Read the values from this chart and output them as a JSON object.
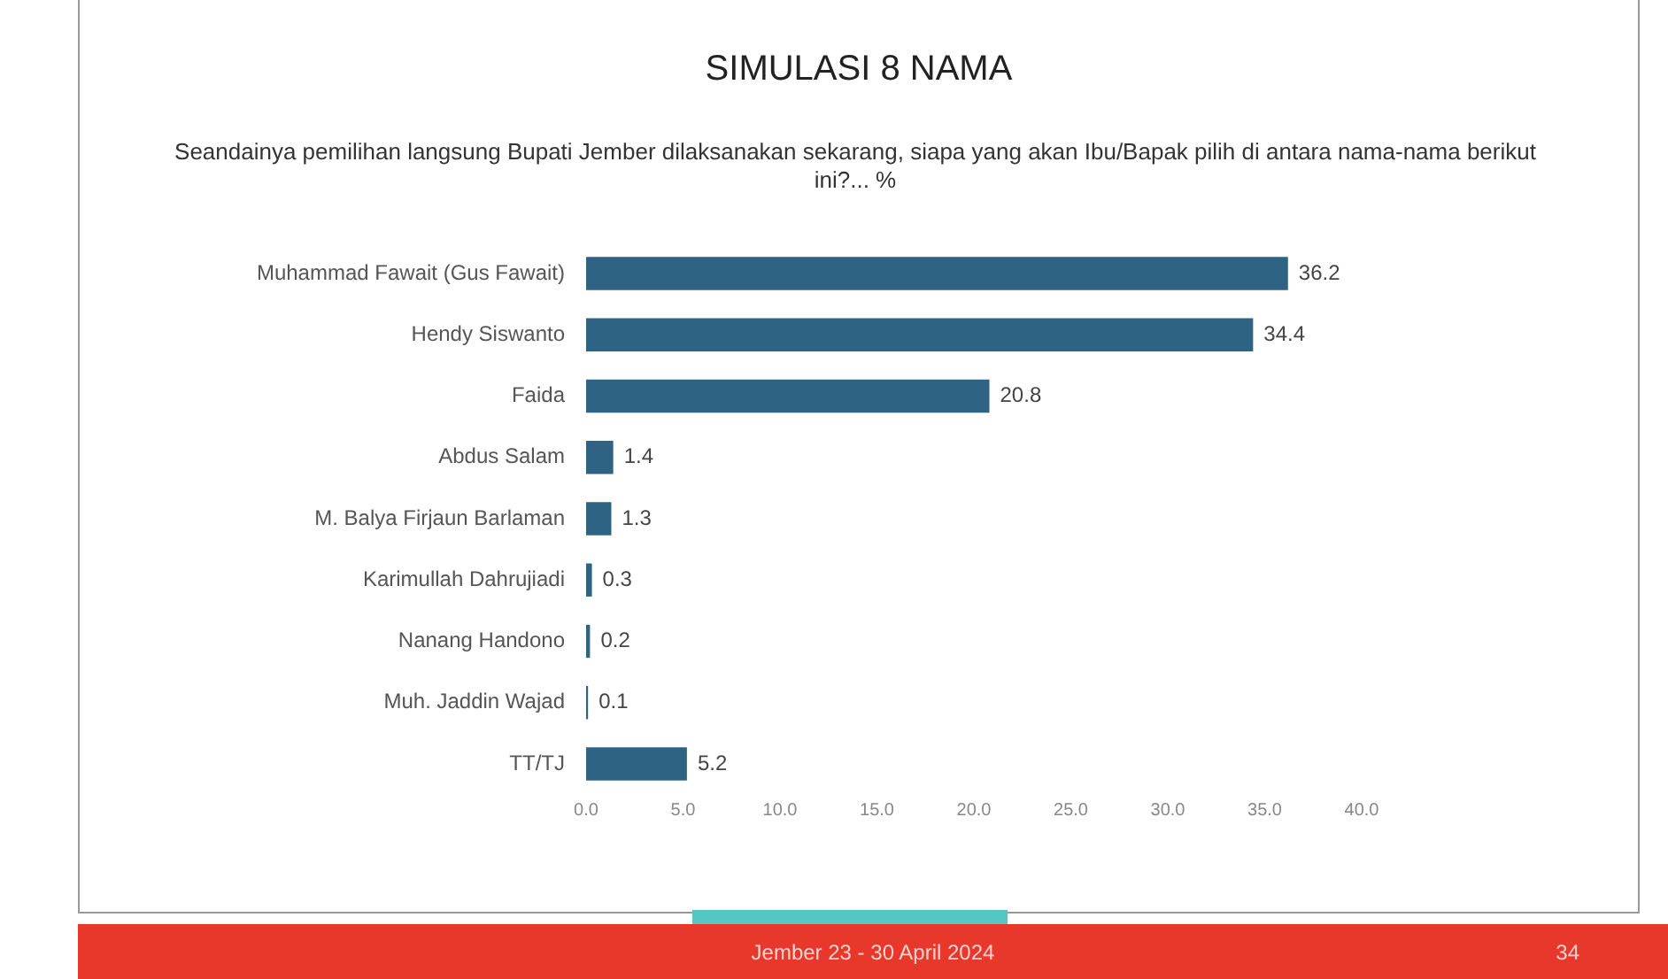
{
  "chart_data": {
    "type": "bar",
    "orientation": "horizontal",
    "title": "SIMULASI 8 NAMA",
    "subtitle": "Seandainya pemilihan langsung Bupati Jember dilaksanakan sekarang, siapa yang akan Ibu/Bapak pilih di antara nama-nama berikut ini?... %",
    "categories": [
      "Muhammad Fawait (Gus Fawait)",
      "Hendy Siswanto",
      "Faida",
      "Abdus Salam",
      "M. Balya Firjaun Barlaman",
      "Karimullah Dahrujiadi",
      "Nanang Handono",
      "Muh. Jaddin Wajad",
      "TT/TJ"
    ],
    "values": [
      36.2,
      34.4,
      20.8,
      1.4,
      1.3,
      0.3,
      0.2,
      0.1,
      5.2
    ],
    "color": "#2e6384",
    "xlim": [
      0,
      40
    ],
    "xticks": [
      {
        "value": 0,
        "label": "0.0"
      },
      {
        "value": 5,
        "label": "5.0"
      },
      {
        "value": 10,
        "label": "10.0"
      },
      {
        "value": 15,
        "label": "15.0"
      },
      {
        "value": 20,
        "label": "20.0"
      },
      {
        "value": 25,
        "label": "25.0"
      },
      {
        "value": 30,
        "label": "30.0"
      },
      {
        "value": 35,
        "label": "35.0"
      },
      {
        "value": 40,
        "label": "40.0"
      }
    ],
    "grid": false,
    "legend": false,
    "data_labels": true,
    "annotations": [
      "Jember 23 - 30 April 2024",
      "34"
    ]
  }
}
